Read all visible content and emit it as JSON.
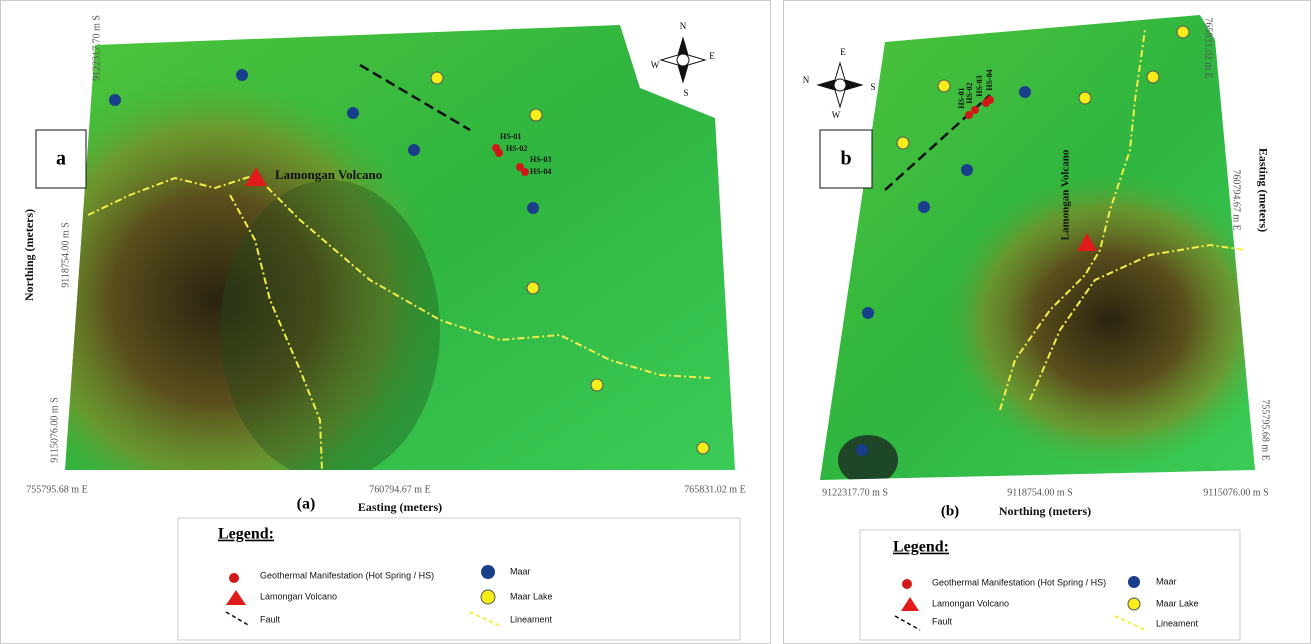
{
  "panels": [
    {
      "label": "a",
      "caption": "(a)",
      "x_axis_title": "Easting (meters)",
      "y_axis_title": "Northing (meters)",
      "x_ticks": [
        "755795.68 m E",
        "760794.67 m E",
        "765831.02 m E"
      ],
      "y_ticks": [
        "9122317.70 m S",
        "9118754.00 m S",
        "9115076.00 m S"
      ],
      "volcano_label": "Lamongan Volcano",
      "hot_springs": [
        "HS-01",
        "HS-02",
        "HS-03",
        "HS-04"
      ],
      "compass": {
        "n": "N",
        "e": "E",
        "s": "S",
        "w": "W"
      },
      "legend": {
        "title": "Legend:",
        "items": [
          "Geothermal Manifestation (Hot Spring / HS)",
          "Lamongan Volcano",
          "Fault",
          "Maar",
          "Maar Lake",
          "Lineament"
        ]
      }
    },
    {
      "label": "b",
      "caption": "(b)",
      "x_axis_title": "Northing (meters)",
      "y_axis_title": "Easting (meters)",
      "x_ticks": [
        "9122317.70 m S",
        "9118754.00 m S",
        "9115076.00 m S"
      ],
      "y_ticks": [
        "765831.02 m E",
        "760794.67 m E",
        "755795.68 m E"
      ],
      "volcano_label": "Lamongan Volcano",
      "hot_springs": [
        "HS-01",
        "HS-02",
        "HS-03",
        "HS-04"
      ],
      "compass": {
        "n": "N",
        "e": "E",
        "s": "S",
        "w": "W"
      },
      "legend": {
        "title": "Legend:",
        "items": [
          "Geothermal Manifestation (Hot Spring / HS)",
          "Lamongan Volcano",
          "Fault",
          "Maar",
          "Maar Lake",
          "Lineament"
        ]
      }
    }
  ]
}
